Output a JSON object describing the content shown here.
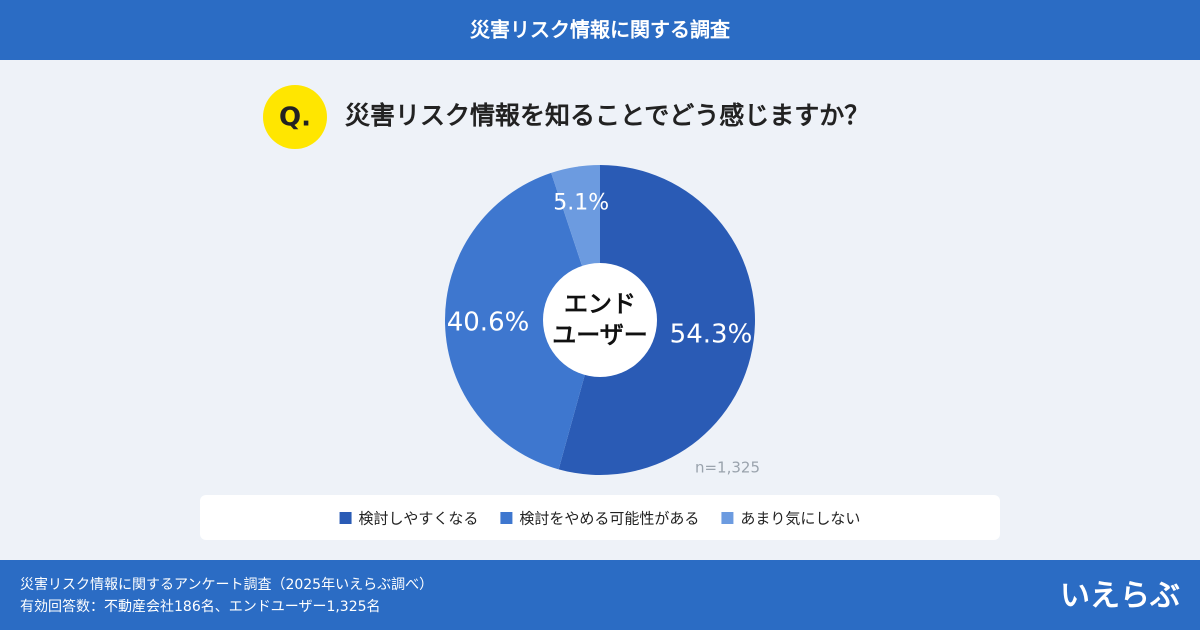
{
  "header": {
    "title": "災害リスク情報に関する調査"
  },
  "question": {
    "marker": "Q.",
    "text": "災害リスク情報を知ることでどう感じますか？"
  },
  "chart_data": {
    "type": "pie",
    "center_label": [
      "エンド",
      "ユーザー"
    ],
    "categories": [
      "検討しやすくなる",
      "検討をやめる可能性がある",
      "あまり気にしない"
    ],
    "values": [
      54.3,
      40.6,
      5.1
    ],
    "value_labels": [
      "54.3%",
      "40.6%",
      "5.1%"
    ],
    "colors": [
      "#2a5bb5",
      "#3e77cf",
      "#6c9be0"
    ],
    "annotation": "n=1,325"
  },
  "footer": {
    "lines": [
      "災害リスク情報に関するアンケート調査（2025年いえらぶ調べ）",
      "有効回答数：不動産会社186名、エンドユーザー1,325名"
    ],
    "logo": "いえらぶ"
  }
}
